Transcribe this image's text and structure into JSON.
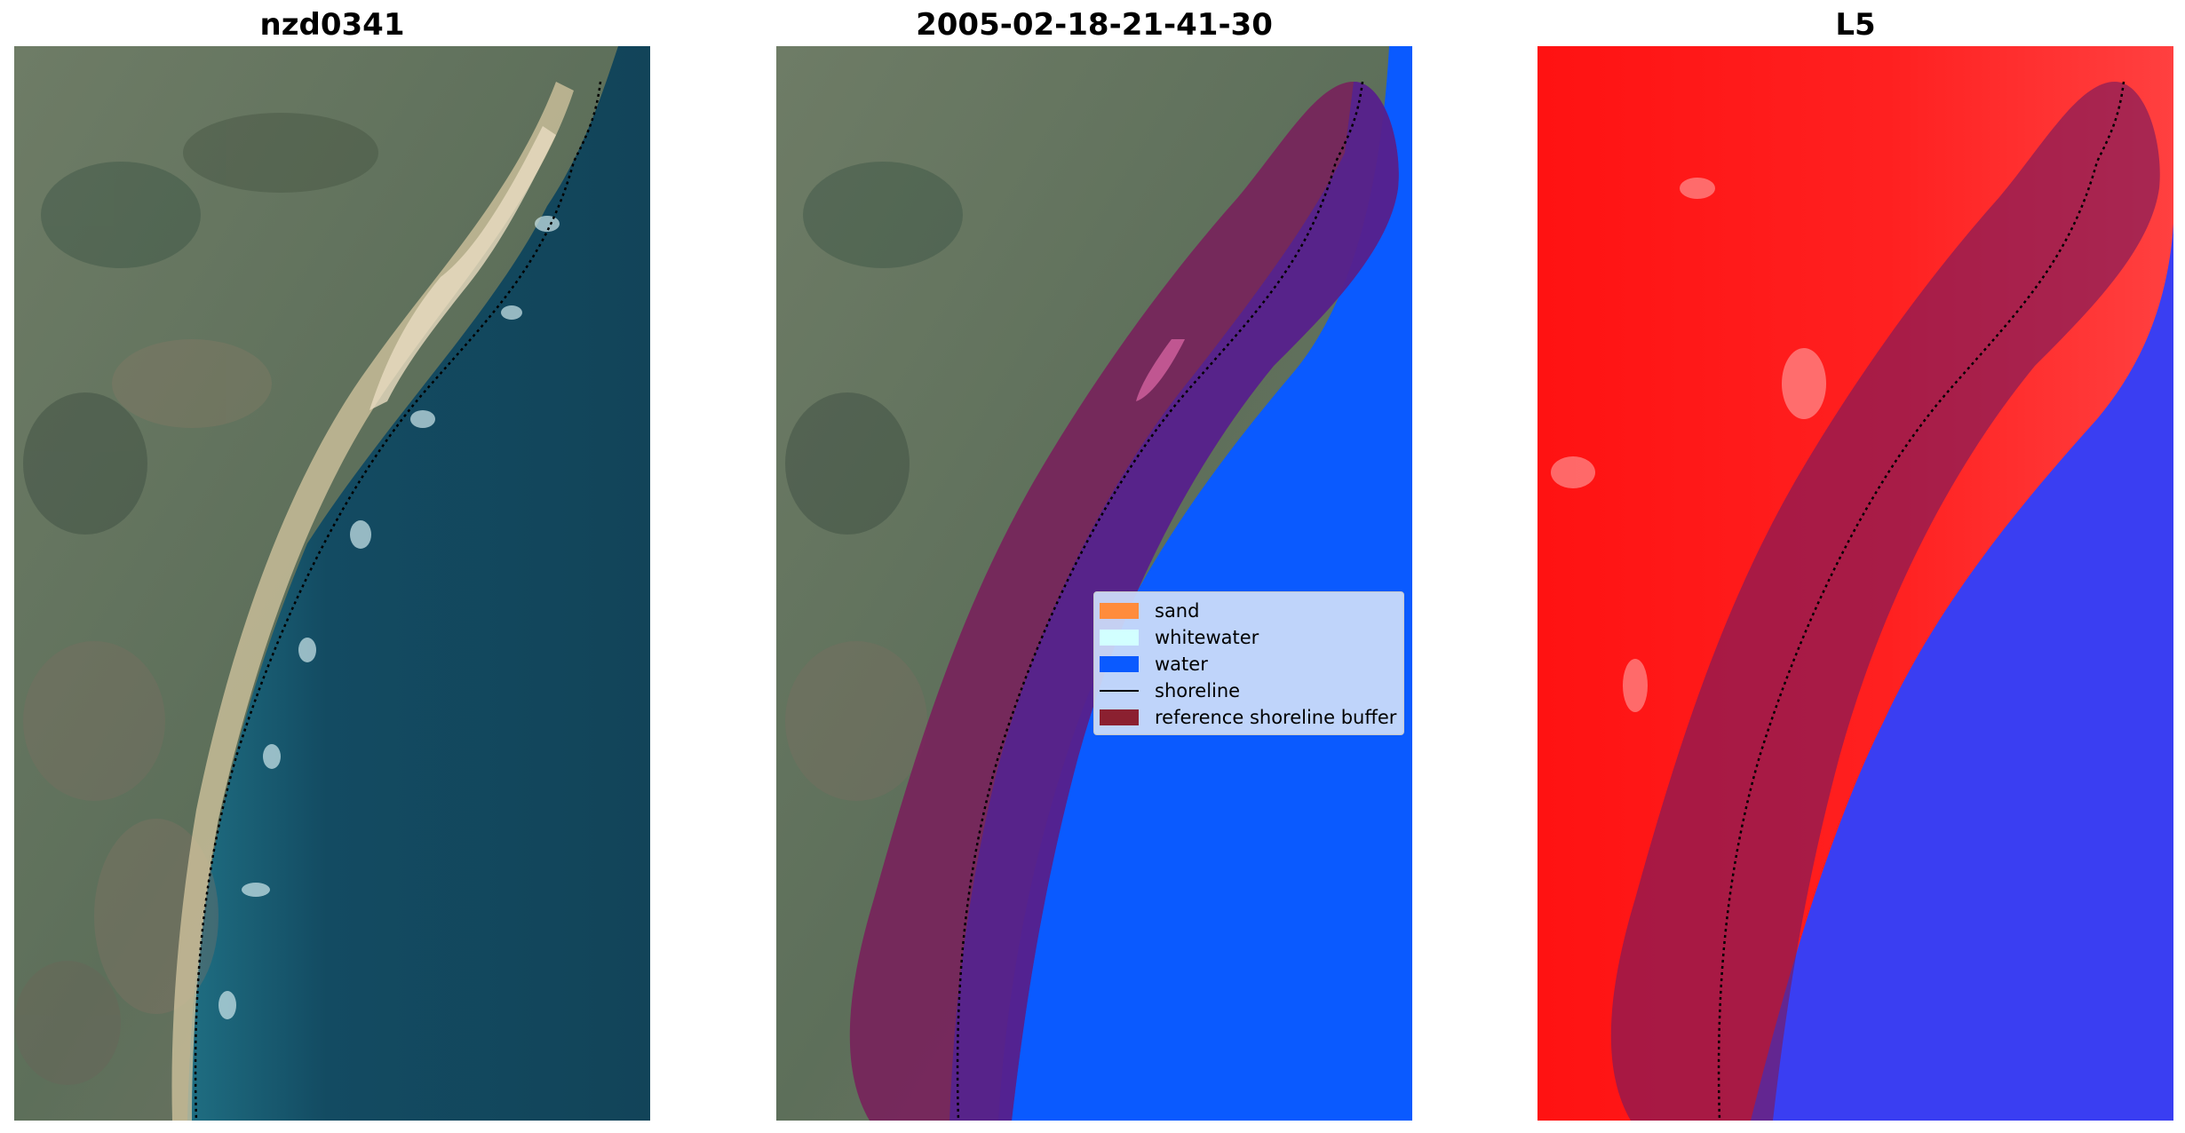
{
  "panels": [
    {
      "title": "nzd0341"
    },
    {
      "title": "2005-02-18-21-41-30"
    },
    {
      "title": "L5"
    }
  ],
  "legend": {
    "items": [
      {
        "label": "sand",
        "color": "#ff8c3c"
      },
      {
        "label": "whitewater",
        "color": "#d2ffff"
      },
      {
        "label": "water",
        "color": "#0a5aff"
      },
      {
        "label": "shoreline",
        "color": "#000000"
      },
      {
        "label": "reference shoreline buffer",
        "color": "#8b2030"
      }
    ]
  },
  "colors": {
    "land": "#5f7560",
    "sea": "#124a60",
    "beach": "#d7c9a2",
    "water_class": "#0a5aff",
    "buffer": "#7a1a5c",
    "buffer_over_water": "#5a1e99",
    "index_land": "#ff1010",
    "index_water": "#3a3ef2"
  }
}
